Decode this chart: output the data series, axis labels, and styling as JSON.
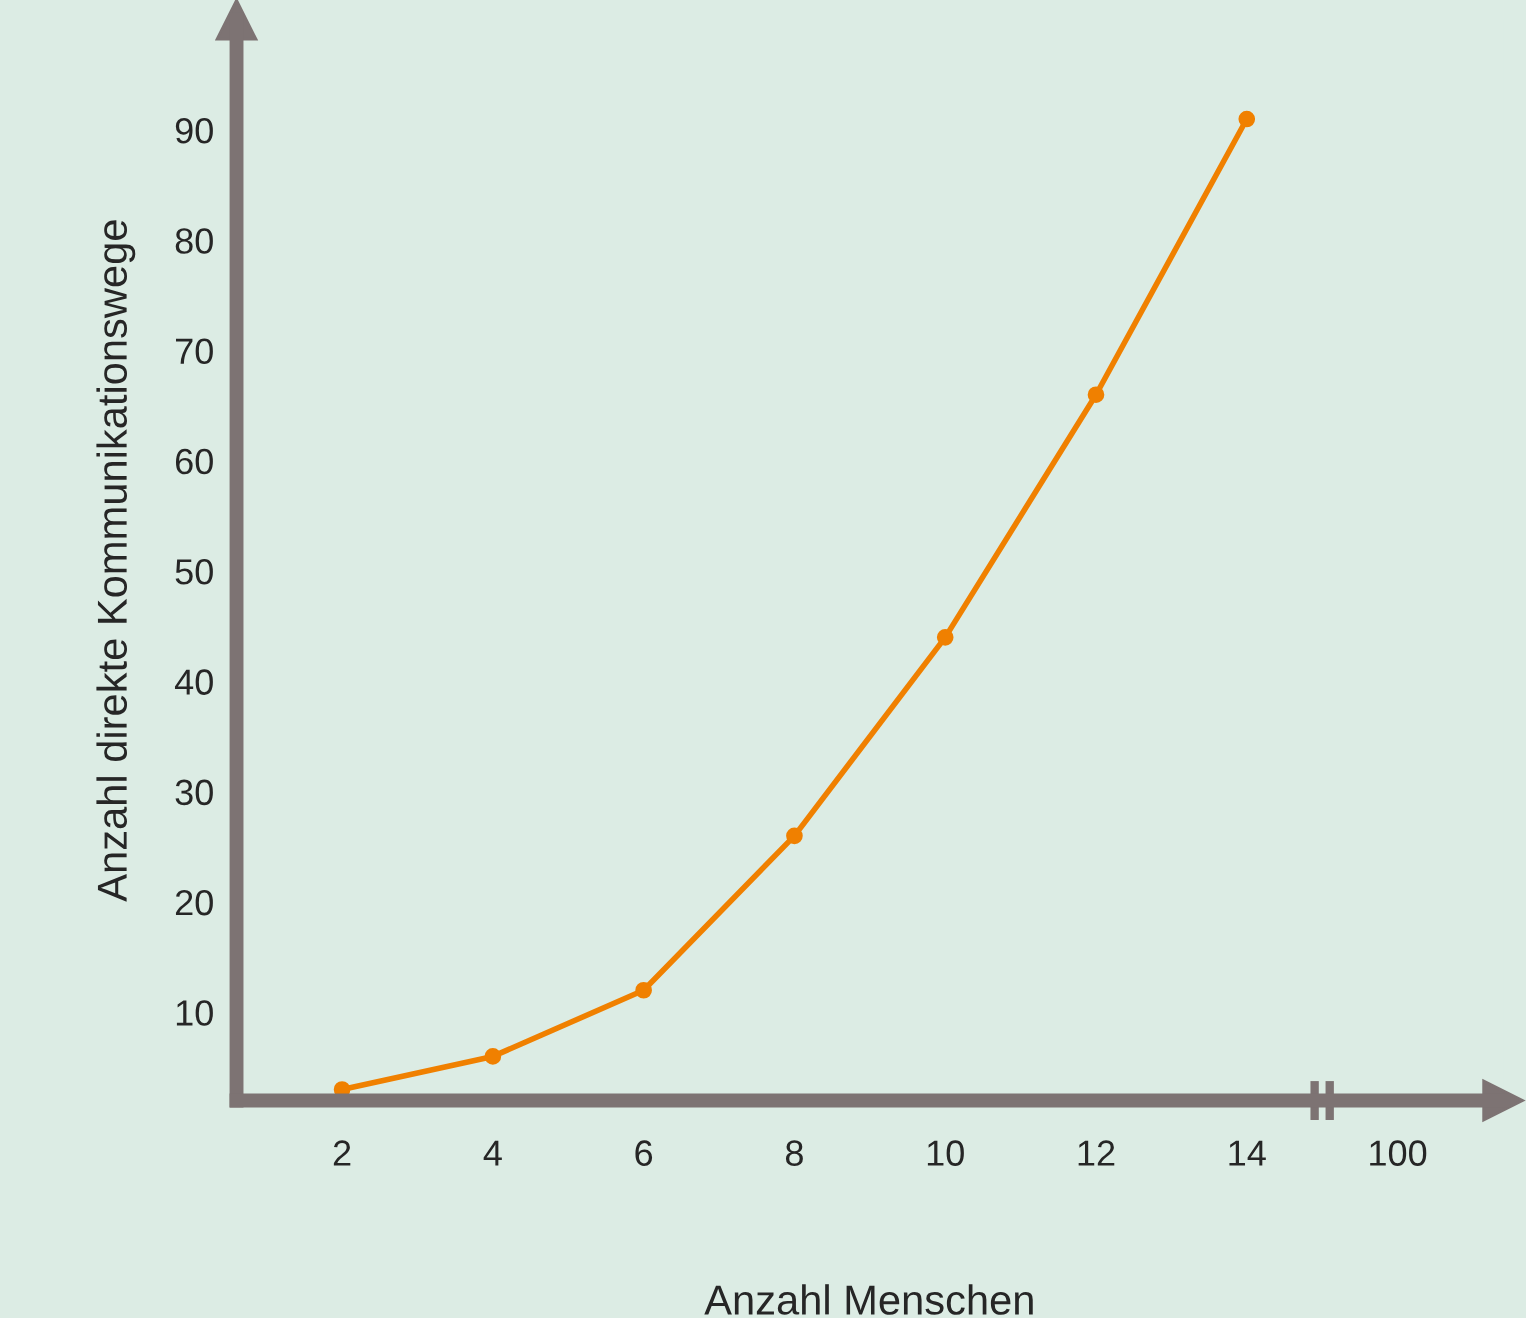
{
  "chart_data": {
    "type": "line",
    "xlabel": "Anzahl Menschen",
    "ylabel": "Anzahl direkte Kommunikationswege",
    "categories": [
      "2",
      "4",
      "6",
      "8",
      "10",
      "12",
      "14",
      "100"
    ],
    "series": [
      {
        "color": "#f08000",
        "values": [
          3,
          6,
          12,
          26,
          44,
          66,
          91,
          null
        ]
      }
    ],
    "ylim": [
      2,
      100
    ],
    "yticks": [
      10,
      20,
      30,
      40,
      50,
      60,
      70,
      80,
      90
    ],
    "marker": "circle",
    "line_style": "solid",
    "grid": false,
    "legend": false
  }
}
